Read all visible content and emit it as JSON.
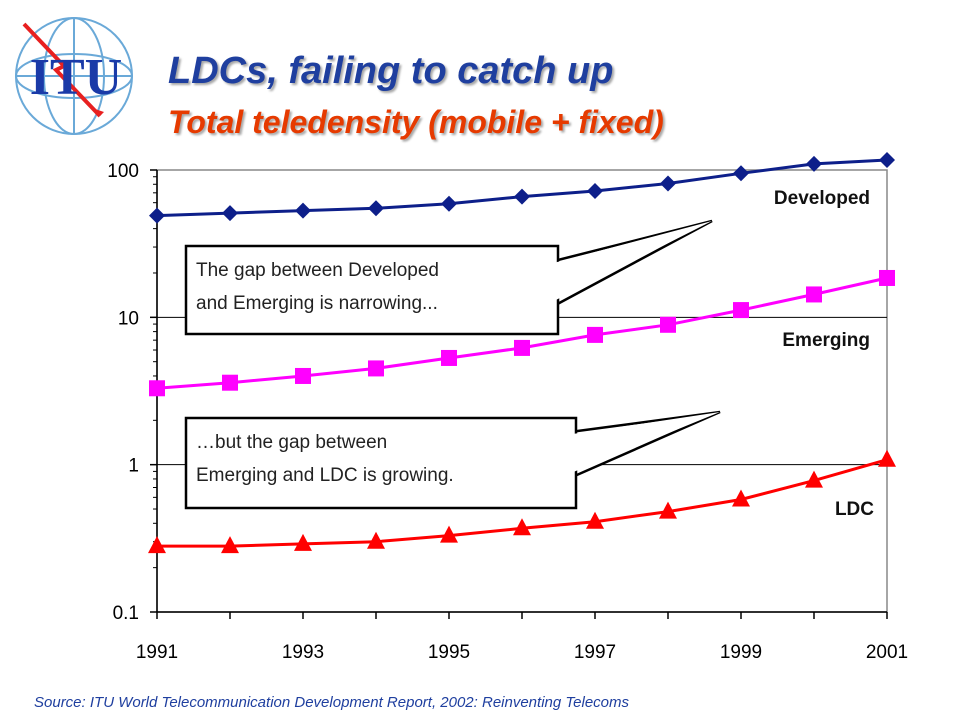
{
  "logo": {
    "text": "ITU"
  },
  "header": {
    "title": "LDCs, failing to catch up",
    "subtitle": "Total teledensity (mobile + fixed)"
  },
  "colors": {
    "title": "#1f3f9f",
    "subtitle": "#e63a00",
    "developed": "#0d1f8a",
    "emerging": "#ff00ff",
    "ldc": "#ff0000"
  },
  "callouts": [
    {
      "lines": [
        "The gap between Developed",
        "and Emerging is narrowing..."
      ]
    },
    {
      "lines": [
        "…but the gap between",
        "Emerging and LDC is growing."
      ]
    }
  ],
  "source": "Source: ITU World Telecommunication Development Report, 2002: Reinventing Telecoms",
  "chart_data": {
    "type": "line",
    "title": "",
    "xlabel": "",
    "ylabel": "",
    "y_scale": "log",
    "x_ticks": [
      1991,
      1993,
      1995,
      1997,
      1999,
      2001
    ],
    "y_ticks": [
      0.1,
      1,
      10,
      100
    ],
    "y_tick_labels": [
      "0.1",
      "1",
      "10",
      "100"
    ],
    "xlim": [
      1991,
      2001
    ],
    "ylim": [
      0.1,
      100
    ],
    "grid": "horizontal major gridlines",
    "series": [
      {
        "name": "Developed",
        "marker": "diamond",
        "x": [
          1991,
          1992,
          1993,
          1994,
          1995,
          1996,
          1997,
          1998,
          1999,
          2000,
          2001
        ],
        "values": [
          49,
          51,
          53,
          55,
          59,
          66,
          72,
          81,
          95,
          110,
          117
        ]
      },
      {
        "name": "Emerging",
        "marker": "square",
        "x": [
          1991,
          1992,
          1993,
          1994,
          1995,
          1996,
          1997,
          1998,
          1999,
          2000,
          2001
        ],
        "values": [
          3.3,
          3.6,
          4.0,
          4.5,
          5.3,
          6.2,
          7.6,
          8.9,
          11.2,
          14.3,
          18.5
        ]
      },
      {
        "name": "LDC",
        "marker": "triangle",
        "x": [
          1991,
          1992,
          1993,
          1994,
          1995,
          1996,
          1997,
          1998,
          1999,
          2000,
          2001
        ],
        "values": [
          0.28,
          0.28,
          0.29,
          0.3,
          0.33,
          0.37,
          0.41,
          0.48,
          0.58,
          0.78,
          1.08
        ]
      }
    ]
  }
}
